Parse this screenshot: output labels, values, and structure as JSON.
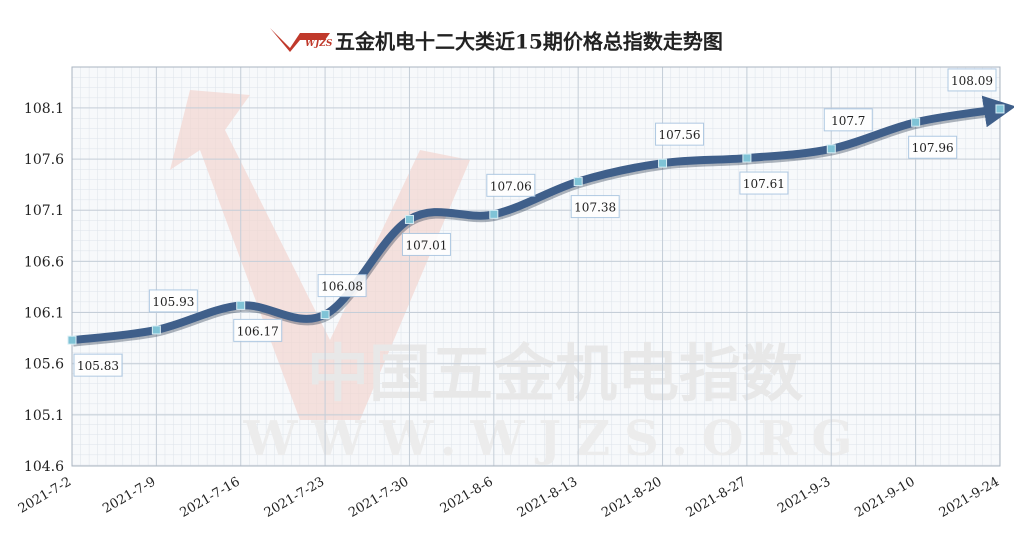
{
  "chart_data": {
    "type": "line",
    "title": "五金机电十二大类近15期价格总指数走势图",
    "logo": "WJZS",
    "watermark": {
      "text": "中国五金机电指数",
      "url": "WWW.WJZS.ORG"
    },
    "categories": [
      "2021-7-2",
      "2021-7-9",
      "2021-7-16",
      "2021-7-23",
      "2021-7-30",
      "2021-8-6",
      "2021-8-13",
      "2021-8-20",
      "2021-8-27",
      "2021-9-3",
      "2021-9-10",
      "2021-9-24"
    ],
    "series": [
      {
        "name": "价格总指数",
        "color": "#3f5f8a",
        "values": [
          105.83,
          105.93,
          106.17,
          106.08,
          107.01,
          107.06,
          107.38,
          107.56,
          107.61,
          107.7,
          107.96,
          108.09
        ]
      }
    ],
    "ylim": [
      104.6,
      108.5
    ],
    "yticks": [
      104.6,
      105.1,
      105.6,
      106.1,
      106.6,
      107.1,
      107.6,
      108.1
    ],
    "grid": true
  }
}
